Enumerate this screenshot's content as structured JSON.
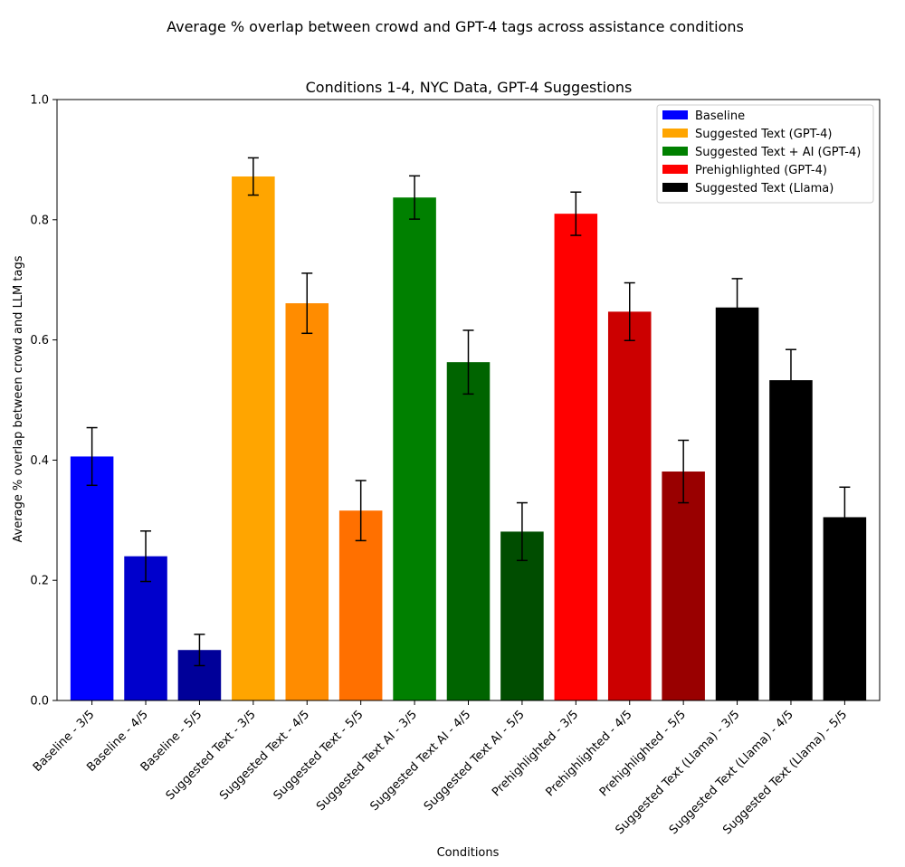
{
  "figure_title": "Average % overlap between crowd and GPT-4 tags across assistance conditions",
  "chart_data": {
    "type": "bar",
    "title": "Conditions 1-4, NYC Data, GPT-4 Suggestions",
    "xlabel": "Conditions",
    "ylabel": "Average % overlap between crowd and LLM tags",
    "ylim": [
      0,
      1.0
    ],
    "yticks": [
      "0.0",
      "0.2",
      "0.4",
      "0.6",
      "0.8",
      "1.0"
    ],
    "categories": [
      "Baseline - 3/5",
      "Baseline - 4/5",
      "Baseline - 5/5",
      "Suggested Text - 3/5",
      "Suggested Text - 4/5",
      "Suggested Text - 5/5",
      "Suggested Text AI - 3/5",
      "Suggested Text AI - 4/5",
      "Suggested Text AI - 5/5",
      "Prehighlighted - 3/5",
      "Prehighlighted - 4/5",
      "Prehighlighted - 5/5",
      "Suggested Text (Llama) - 3/5",
      "Suggested Text (Llama) - 4/5",
      "Suggested Text (Llama) - 5/5"
    ],
    "values": [
      0.406,
      0.24,
      0.084,
      0.872,
      0.661,
      0.316,
      0.837,
      0.563,
      0.281,
      0.81,
      0.647,
      0.381,
      0.654,
      0.533,
      0.305
    ],
    "errors": [
      0.048,
      0.042,
      0.026,
      0.031,
      0.05,
      0.05,
      0.036,
      0.053,
      0.048,
      0.036,
      0.048,
      0.052,
      0.048,
      0.051,
      0.05
    ],
    "bar_colors": [
      "#0000ff",
      "#0000cc",
      "#000099",
      "#ffa500",
      "#ff8c00",
      "#ff7000",
      "#008000",
      "#006400",
      "#004d00",
      "#ff0000",
      "#cc0000",
      "#990000",
      "#000000",
      "#000000",
      "#000000"
    ],
    "legend_position": "top-right",
    "legend": [
      {
        "label": "Baseline",
        "color": "#0000ff"
      },
      {
        "label": "Suggested Text (GPT-4)",
        "color": "#ffa500"
      },
      {
        "label": "Suggested Text + AI (GPT-4)",
        "color": "#008000"
      },
      {
        "label": "Prehighlighted (GPT-4)",
        "color": "#ff0000"
      },
      {
        "label": "Suggested Text (Llama)",
        "color": "#000000"
      }
    ]
  }
}
